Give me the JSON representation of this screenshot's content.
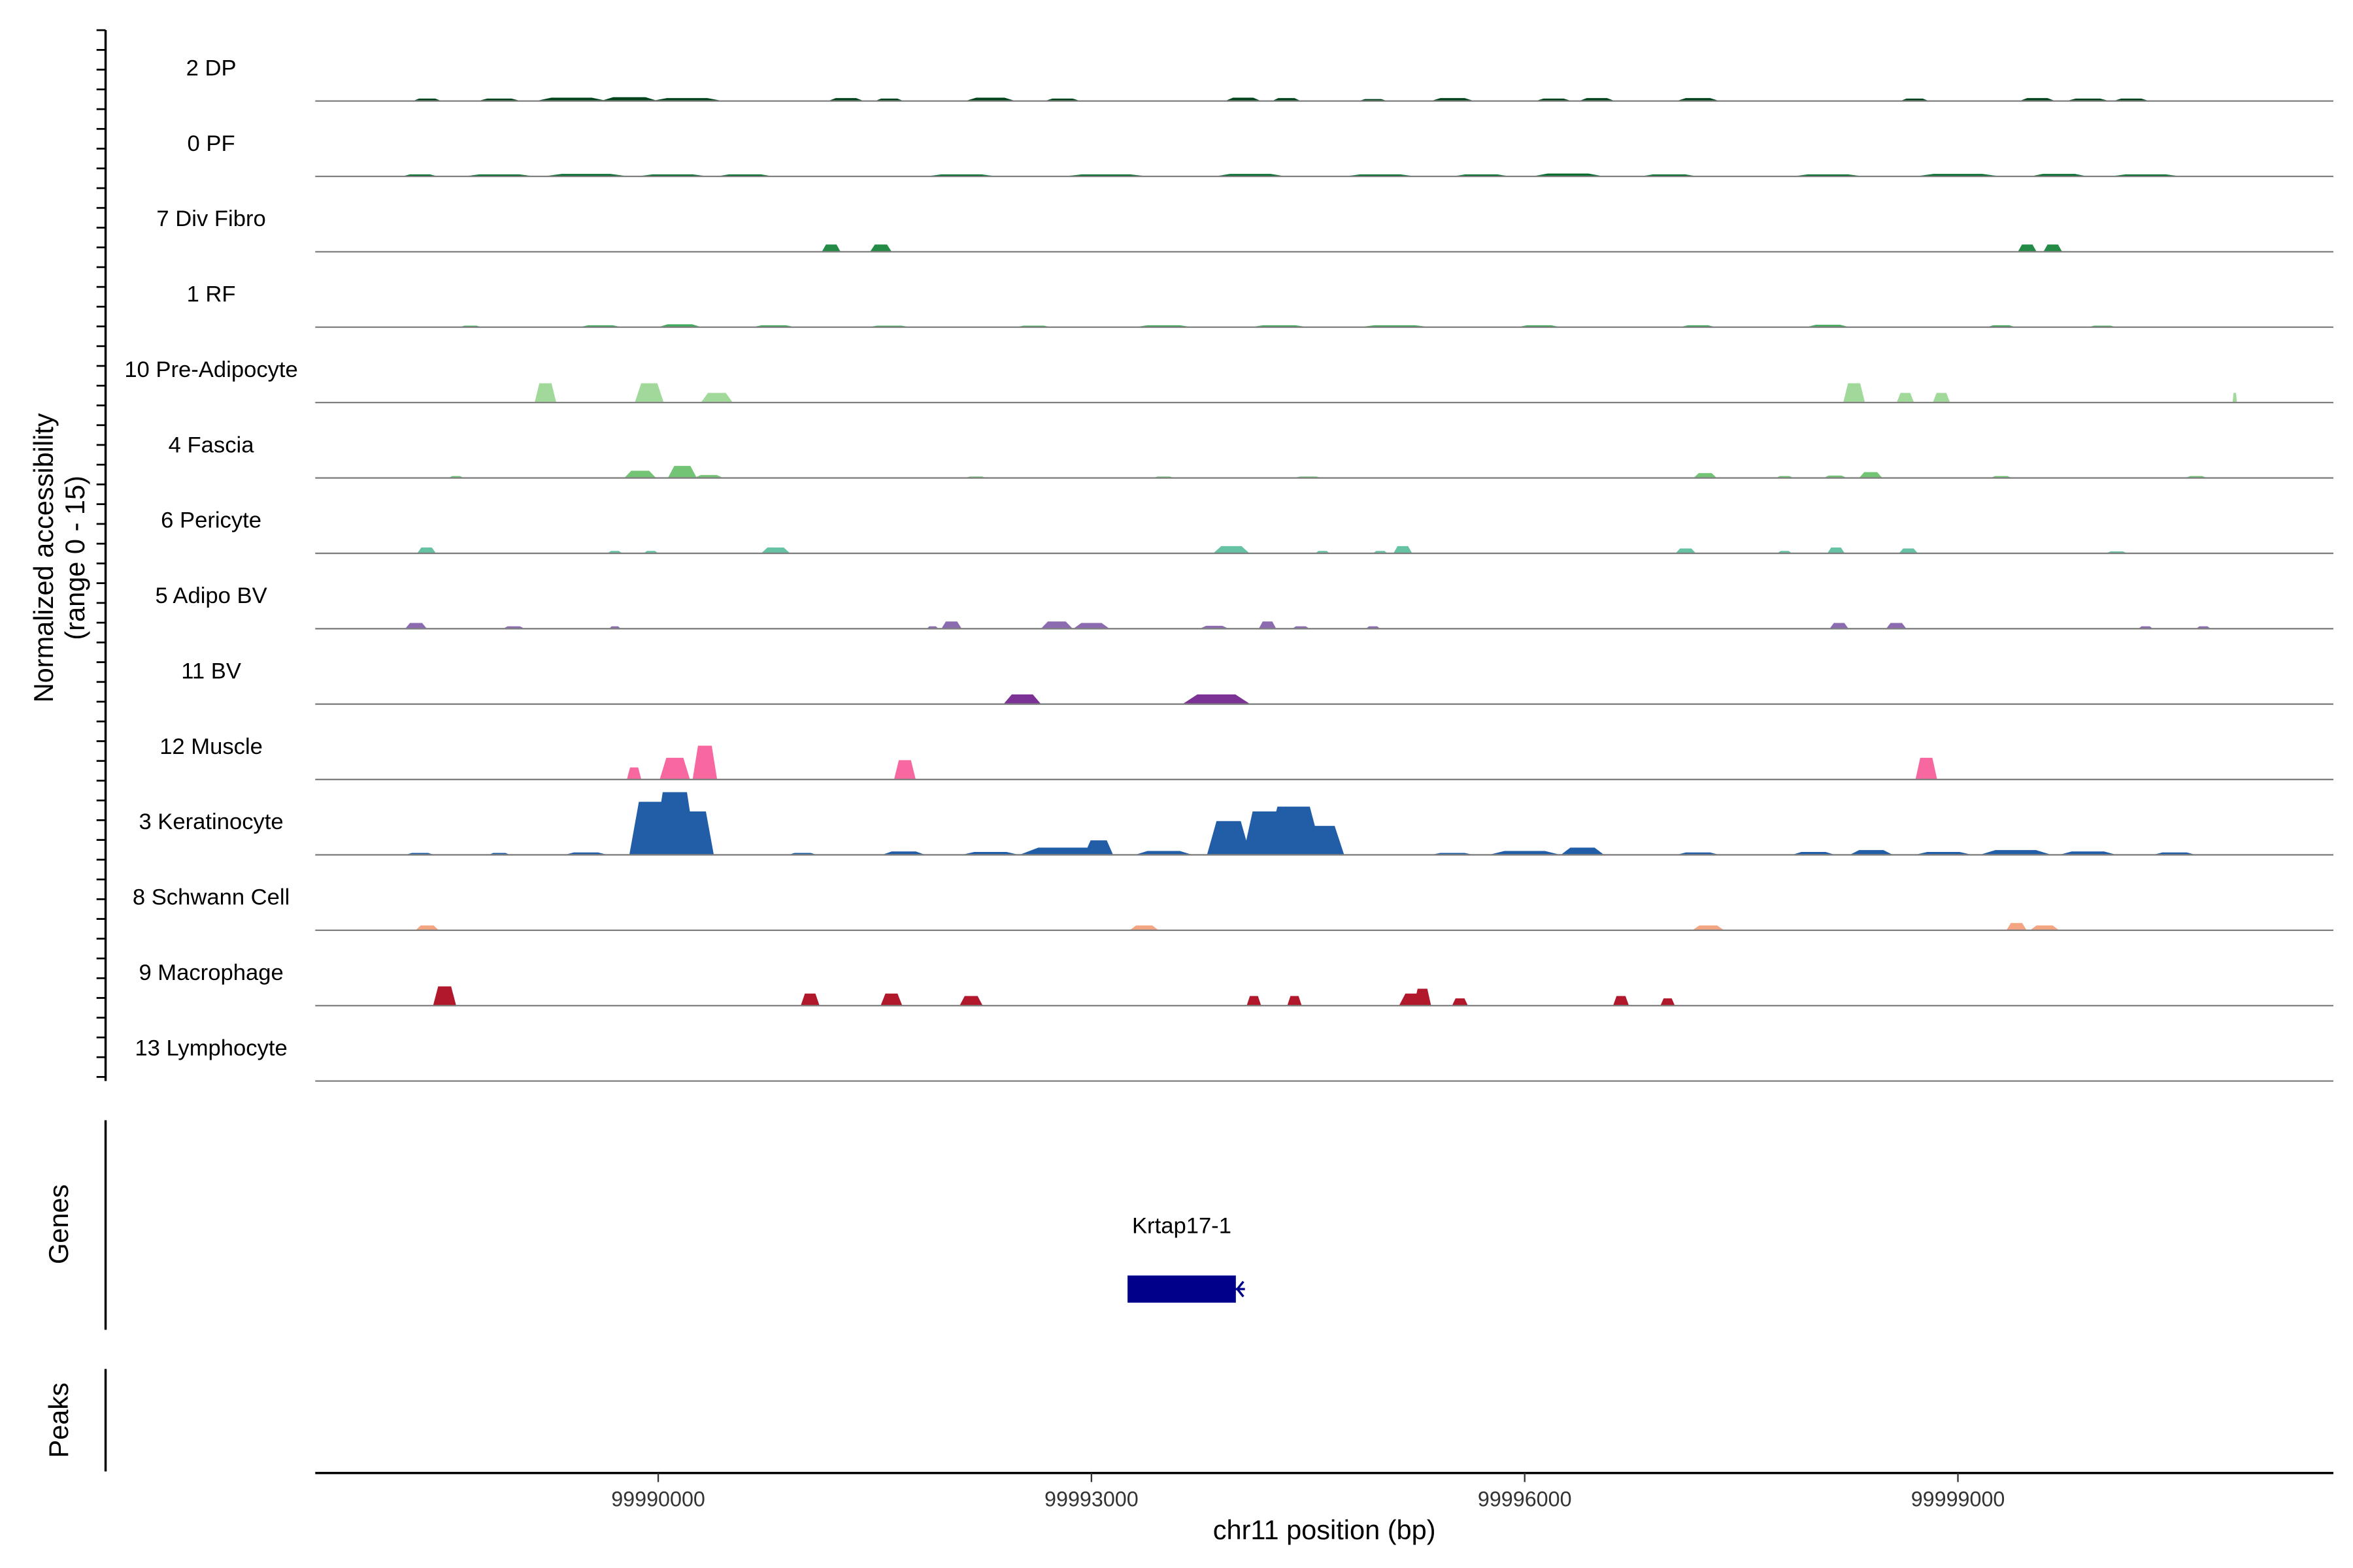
{
  "chart_data": {
    "type": "area",
    "ylabel": "Normalized accessibility",
    "ylabel_range": "(range 0 - 15)",
    "ylim": [
      0,
      15
    ],
    "xlabel": "chr11 position (bp)",
    "xlim": [
      99987625,
      100001600
    ],
    "x_ticks": [
      {
        "value": 99990000,
        "label": "99990000"
      },
      {
        "value": 99993000,
        "label": "99993000"
      },
      {
        "value": 99996000,
        "label": "99996000"
      },
      {
        "value": 99999000,
        "label": "99999000"
      }
    ],
    "peak_format": "[center_bp, width_bp, height]",
    "tracks": [
      {
        "name": "2 DP",
        "color": "#00441b",
        "peaks": [
          [
            99988400,
            200,
            0.5
          ],
          [
            99988900,
            300,
            0.5
          ],
          [
            99989400,
            500,
            0.7
          ],
          [
            99989800,
            400,
            0.8
          ],
          [
            99990200,
            500,
            0.6
          ],
          [
            99991300,
            250,
            0.6
          ],
          [
            99991600,
            200,
            0.5
          ],
          [
            99992300,
            350,
            0.7
          ],
          [
            99992800,
            250,
            0.5
          ],
          [
            99994050,
            250,
            0.7
          ],
          [
            99994350,
            200,
            0.6
          ],
          [
            99994950,
            200,
            0.4
          ],
          [
            99995500,
            300,
            0.6
          ],
          [
            99996200,
            250,
            0.5
          ],
          [
            99996500,
            250,
            0.6
          ],
          [
            99997200,
            300,
            0.6
          ],
          [
            99998700,
            200,
            0.5
          ],
          [
            99999550,
            250,
            0.6
          ],
          [
            99999900,
            300,
            0.5
          ],
          [
            100000200,
            250,
            0.5
          ]
        ]
      },
      {
        "name": "0 PF",
        "color": "#006d2c",
        "peaks": [
          [
            99988350,
            250,
            0.4
          ],
          [
            99988900,
            500,
            0.4
          ],
          [
            99989500,
            600,
            0.5
          ],
          [
            99990100,
            500,
            0.4
          ],
          [
            99990600,
            400,
            0.4
          ],
          [
            99992100,
            500,
            0.4
          ],
          [
            99993100,
            600,
            0.4
          ],
          [
            99994100,
            500,
            0.5
          ],
          [
            99995000,
            500,
            0.4
          ],
          [
            99995700,
            400,
            0.4
          ],
          [
            99996300,
            500,
            0.6
          ],
          [
            99997000,
            400,
            0.4
          ],
          [
            99998100,
            500,
            0.4
          ],
          [
            99999000,
            600,
            0.5
          ],
          [
            99999700,
            400,
            0.5
          ],
          [
            100000300,
            500,
            0.4
          ]
        ]
      },
      {
        "name": "7 Div Fibro",
        "color": "#238b45",
        "peaks": [
          [
            99991198,
            130,
            1.5
          ],
          [
            99991542,
            150,
            1.5
          ],
          [
            99999480,
            130,
            1.5
          ],
          [
            99999657,
            130,
            1.5
          ]
        ]
      },
      {
        "name": "1 RF",
        "color": "#41ab5d",
        "peaks": [
          [
            99988700,
            150,
            0.3
          ],
          [
            99989600,
            300,
            0.4
          ],
          [
            99990150,
            300,
            0.6
          ],
          [
            99990800,
            300,
            0.4
          ],
          [
            99991600,
            300,
            0.3
          ],
          [
            99992600,
            250,
            0.3
          ],
          [
            99993500,
            400,
            0.4
          ],
          [
            99994300,
            400,
            0.4
          ],
          [
            99995100,
            500,
            0.4
          ],
          [
            99996100,
            300,
            0.4
          ],
          [
            99997200,
            250,
            0.4
          ],
          [
            99998100,
            300,
            0.5
          ],
          [
            99999300,
            200,
            0.4
          ],
          [
            100000000,
            200,
            0.3
          ]
        ]
      },
      {
        "name": "10 Pre-Adipocyte",
        "color": "#a1d99b",
        "peaks": [
          [
            99989219,
            150,
            4
          ],
          [
            99989938,
            200,
            4
          ],
          [
            99990406,
            220,
            2
          ],
          [
            99998281,
            150,
            4
          ],
          [
            99998636,
            120,
            2
          ],
          [
            99998886,
            120,
            2
          ],
          [
            100000917,
            30,
            2
          ]
        ]
      },
      {
        "name": "4 Fascia",
        "color": "#74c476",
        "peaks": [
          [
            99988600,
            100,
            0.4
          ],
          [
            99989875,
            220,
            1.5
          ],
          [
            99990167,
            200,
            2.5
          ],
          [
            99990350,
            200,
            0.6
          ],
          [
            99992200,
            150,
            0.3
          ],
          [
            99993500,
            150,
            0.3
          ],
          [
            99994500,
            200,
            0.3
          ],
          [
            99997250,
            160,
            1
          ],
          [
            99997800,
            120,
            0.4
          ],
          [
            99998150,
            160,
            0.5
          ],
          [
            99998396,
            160,
            1.2
          ],
          [
            99999300,
            150,
            0.4
          ],
          [
            100000650,
            150,
            0.4
          ]
        ]
      },
      {
        "name": "6 Pericyte",
        "color": "#66c2a4",
        "peaks": [
          [
            99988396,
            130,
            1.2
          ],
          [
            99989700,
            100,
            0.5
          ],
          [
            99989950,
            100,
            0.5
          ],
          [
            99990813,
            200,
            1.2
          ],
          [
            99993969,
            250,
            1.5
          ],
          [
            99994600,
            100,
            0.5
          ],
          [
            99995000,
            100,
            0.5
          ],
          [
            99995156,
            130,
            1.5
          ],
          [
            99997115,
            140,
            1
          ],
          [
            99997800,
            100,
            0.5
          ],
          [
            99998156,
            120,
            1.2
          ],
          [
            99998657,
            130,
            1
          ],
          [
            100000100,
            150,
            0.4
          ]
        ]
      },
      {
        "name": "5 Adipo BV",
        "color": "#8c6bb1",
        "peaks": [
          [
            99988323,
            150,
            1.2
          ],
          [
            99989000,
            150,
            0.5
          ],
          [
            99989700,
            80,
            0.5
          ],
          [
            99991900,
            80,
            0.5
          ],
          [
            99992031,
            140,
            1.5
          ],
          [
            99992760,
            220,
            1.5
          ],
          [
            99993000,
            250,
            1.2
          ],
          [
            99993850,
            200,
            0.6
          ],
          [
            99994219,
            120,
            1.5
          ],
          [
            99994450,
            120,
            0.5
          ],
          [
            99994950,
            100,
            0.5
          ],
          [
            99998177,
            130,
            1.2
          ],
          [
            99998573,
            140,
            1.2
          ],
          [
            100000300,
            100,
            0.5
          ],
          [
            100000700,
            100,
            0.5
          ]
        ]
      },
      {
        "name": "11 BV",
        "color": "#7b3294",
        "peaks": [
          [
            99992521,
            260,
            2
          ],
          [
            99993865,
            470,
            2
          ]
        ]
      },
      {
        "name": "12 Muscle",
        "color": "#f768a1",
        "peaks": [
          [
            99989833,
            100,
            2.5
          ],
          [
            99990115,
            210,
            4.5
          ],
          [
            99990323,
            170,
            7
          ],
          [
            99991708,
            150,
            4
          ],
          [
            99998781,
            150,
            4.5
          ]
        ]
      },
      {
        "name": "3 Keratinocyte",
        "color": "#225ea8",
        "peaks": [
          [
            99988350,
            200,
            0.4
          ],
          [
            99988900,
            150,
            0.4
          ],
          [
            99989500,
            300,
            0.5
          ],
          [
            99989950,
            300,
            11
          ],
          [
            99990115,
            300,
            13
          ],
          [
            99990260,
            250,
            9
          ],
          [
            99991000,
            200,
            0.4
          ],
          [
            99991700,
            300,
            0.7
          ],
          [
            99992300,
            400,
            0.6
          ],
          [
            99992800,
            600,
            1.5
          ],
          [
            99993050,
            200,
            3
          ],
          [
            99993500,
            400,
            0.8
          ],
          [
            99993950,
            300,
            7
          ],
          [
            99994200,
            300,
            9
          ],
          [
            99994400,
            400,
            10
          ],
          [
            99994600,
            300,
            6
          ],
          [
            99995500,
            300,
            0.4
          ],
          [
            99996000,
            500,
            0.8
          ],
          [
            99996400,
            300,
            1.5
          ],
          [
            99997200,
            300,
            0.5
          ],
          [
            99998000,
            300,
            0.6
          ],
          [
            99998400,
            300,
            1
          ],
          [
            99998900,
            400,
            0.6
          ],
          [
            99999400,
            500,
            1
          ],
          [
            99999900,
            400,
            0.7
          ],
          [
            100000500,
            300,
            0.5
          ]
        ]
      },
      {
        "name": "8 Schwann Cell",
        "color": "#f4a582",
        "peaks": [
          [
            99988400,
            160,
            1
          ],
          [
            99993365,
            200,
            1
          ],
          [
            99997271,
            220,
            1
          ],
          [
            99999406,
            140,
            1.5
          ],
          [
            99999600,
            200,
            1
          ]
        ]
      },
      {
        "name": "9 Macrophage",
        "color": "#b2182b",
        "peaks": [
          [
            99988521,
            160,
            4
          ],
          [
            99991052,
            130,
            2.5
          ],
          [
            99991615,
            150,
            2.5
          ],
          [
            99992167,
            160,
            2
          ],
          [
            99994125,
            100,
            2
          ],
          [
            99994406,
            100,
            2
          ],
          [
            99995230,
            200,
            2.5
          ],
          [
            99995292,
            120,
            3.5
          ],
          [
            99995552,
            110,
            1.5
          ],
          [
            99996667,
            110,
            2
          ],
          [
            99996990,
            100,
            1.5
          ]
        ]
      },
      {
        "name": "13 Lymphocyte",
        "color": "#08519c",
        "peaks": []
      }
    ]
  },
  "genes_panel": {
    "label": "Genes",
    "gene": {
      "name": "Krtap17-1",
      "start": 99993250,
      "end": 99994000,
      "strand": "-",
      "color": "#00008b"
    }
  },
  "peaks_panel": {
    "label": "Peaks"
  }
}
